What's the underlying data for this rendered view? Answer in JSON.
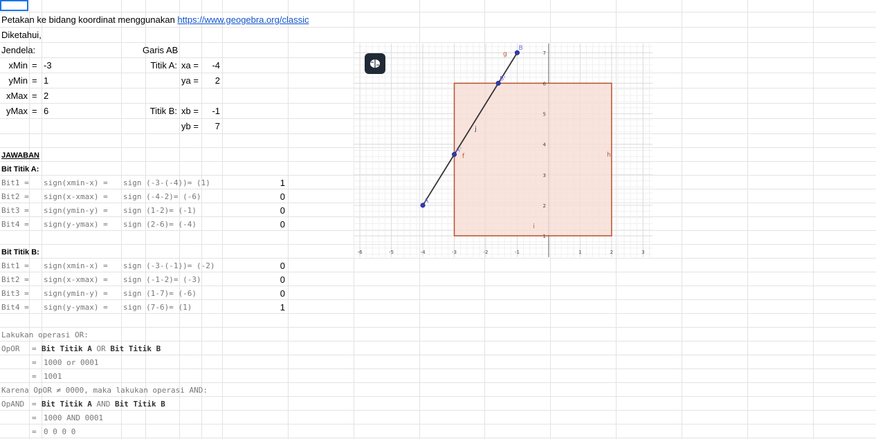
{
  "intro": {
    "text": "Petakan ke bidang koordinat menggunakan ",
    "link": "https://www.geogebra.org/classic"
  },
  "given": "Diketahui,",
  "window_label": "Jendela:",
  "line_label": "Garis  AB",
  "xmin": {
    "label": "xMin",
    "eq": "=",
    "value": "-3"
  },
  "ymin": {
    "label": "yMin",
    "eq": "=",
    "value": "1"
  },
  "xmax": {
    "label": "xMax",
    "eq": "=",
    "value": "2"
  },
  "ymax": {
    "label": "yMax",
    "eq": "=",
    "value": "6"
  },
  "point_a": {
    "label": "Titik A:",
    "x_label": "xa =",
    "x_value": "-4",
    "y_label": "ya =",
    "y_value": "2"
  },
  "point_b": {
    "label": "Titik B:",
    "x_label": "xb =",
    "x_value": "-1",
    "y_label": "yb =",
    "y_value": "7"
  },
  "answer": "JAWABAN",
  "bits_a": {
    "title": "Bit Titik A:",
    "rows": [
      {
        "name": "Bit1 =",
        "formula": "sign(xmin-x) =",
        "calc": "sign (-3-(-4))= (1)",
        "value": "1"
      },
      {
        "name": "Bit2 =",
        "formula": "sign(x-xmax) =",
        "calc": "sign (-4-2)= (-6)",
        "value": "0"
      },
      {
        "name": "Bit3 =",
        "formula": "sign(ymin-y) =",
        "calc": "sign (1-2)= (-1)",
        "value": "0"
      },
      {
        "name": "Bit4 =",
        "formula": "sign(y-ymax) =",
        "calc": "sign (2-6)= (-4)",
        "value": "0"
      }
    ]
  },
  "bits_b": {
    "title": "Bit Titik B:",
    "rows": [
      {
        "name": "Bit1 =",
        "formula": "sign(xmin-x) =",
        "calc": "sign (-3-(-1))= (-2)",
        "value": "0"
      },
      {
        "name": "Bit2 =",
        "formula": "sign(x-xmax) =",
        "calc": "sign (-1-2)= (-3)",
        "value": "0"
      },
      {
        "name": "Bit3 =",
        "formula": "sign(ymin-y) =",
        "calc": "sign (1-7)= (-6)",
        "value": "0"
      },
      {
        "name": "Bit4 =",
        "formula": "sign(y-ymax) =",
        "calc": "sign (7-6)= (1)",
        "value": "1"
      }
    ]
  },
  "or_section": {
    "intro": "Lakukan operasi OR:",
    "label": "OpOR",
    "eq": "=",
    "line1_a": "Bit Titik A",
    "line1_op": "OR",
    "line1_b": "Bit Titik B",
    "line2": "1000 or 0001",
    "line3": "1001"
  },
  "and_section": {
    "intro": "Karena OpOR ≠ 0000, maka lakukan operasi AND:",
    "label": "OpAND",
    "eq": "=",
    "line1_a": "Bit Titik A",
    "line1_op": "AND",
    "line1_b": "Bit Titik B",
    "line2": "1000 AND 0001",
    "line3": "0 0 0 0"
  },
  "graph": {
    "menu_icon": "brain-icon",
    "x_ticks": [
      "-6",
      "-5",
      "-4",
      "-3",
      "-2",
      "-1",
      "1",
      "2",
      "3"
    ],
    "y_ticks": [
      "1",
      "2",
      "3",
      "4",
      "5",
      "6",
      "7"
    ],
    "x_range": [
      -6.2,
      3.3
    ],
    "y_range": [
      0.3,
      7.3
    ],
    "rect": {
      "xmin": -3,
      "ymin": 1,
      "xmax": 2,
      "ymax": 6
    },
    "segment": {
      "name": "j",
      "from": [
        -4,
        2
      ],
      "to": [
        -1,
        7
      ]
    },
    "points": [
      {
        "name": "A",
        "x": -4,
        "y": 2
      },
      {
        "name": "B",
        "x": -1,
        "y": 7
      },
      {
        "name": "A'",
        "x": -3,
        "y": 3.6667
      },
      {
        "name": "B'",
        "x": -1.6,
        "y": 6
      }
    ],
    "edge_labels": [
      "g",
      "h",
      "f",
      "i"
    ],
    "colors": {
      "rect_fill": "#f6dcd4",
      "rect_stroke": "#b4532d",
      "segment": "#333333",
      "point": "#2f3db8",
      "point_label": "#6b6bd8"
    }
  }
}
